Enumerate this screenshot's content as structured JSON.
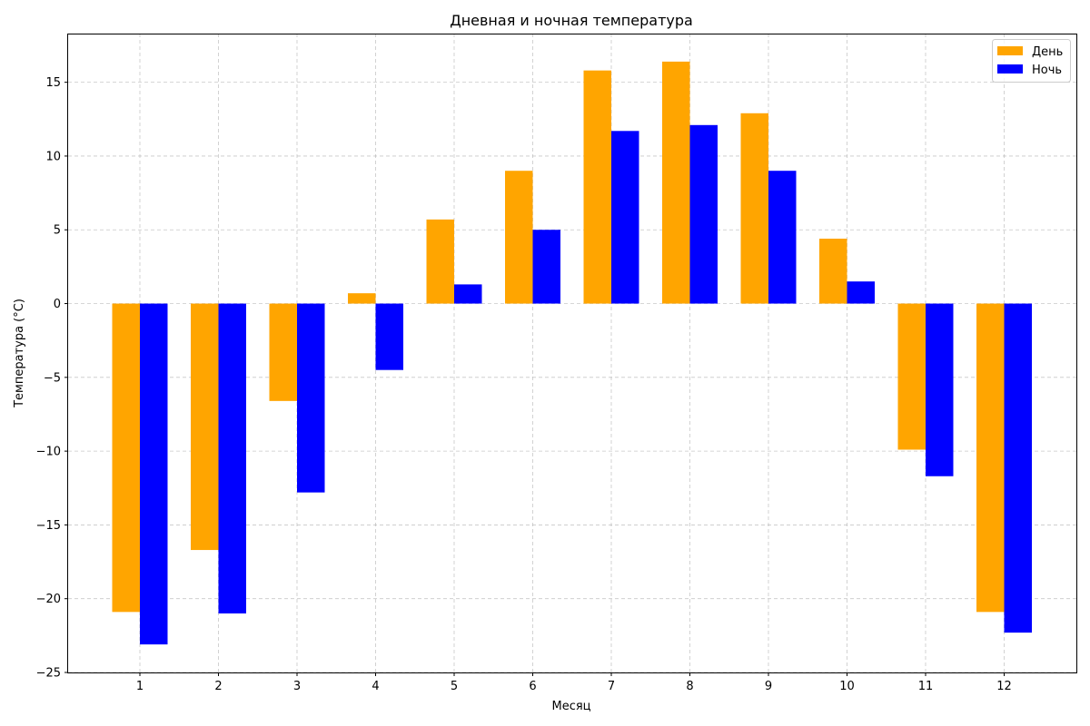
{
  "chart_data": {
    "type": "bar",
    "title": "Дневная и ночная температура",
    "xlabel": "Месяц",
    "ylabel": "Температура (°C)",
    "categories": [
      "1",
      "2",
      "3",
      "4",
      "5",
      "6",
      "7",
      "8",
      "9",
      "10",
      "11",
      "12"
    ],
    "series": [
      {
        "name": "День",
        "color": "#ffa500",
        "values": [
          -20.9,
          -16.7,
          -6.6,
          0.7,
          5.7,
          9.0,
          15.8,
          16.4,
          12.9,
          4.4,
          -9.9,
          -20.9
        ]
      },
      {
        "name": "Ночь",
        "color": "#0000ff",
        "values": [
          -23.1,
          -21.0,
          -12.8,
          -4.5,
          1.3,
          5.0,
          11.7,
          12.1,
          9.0,
          1.5,
          -11.7,
          -22.3
        ]
      }
    ],
    "ylim": [
      -25,
      18.3
    ],
    "yticks": [
      "−25",
      "−20",
      "−15",
      "−10",
      "−5",
      "0",
      "5",
      "10",
      "15"
    ],
    "ytick_values": [
      -25,
      -20,
      -15,
      -10,
      -5,
      0,
      5,
      10,
      15
    ],
    "grid": true,
    "legend_position": "top-right"
  }
}
